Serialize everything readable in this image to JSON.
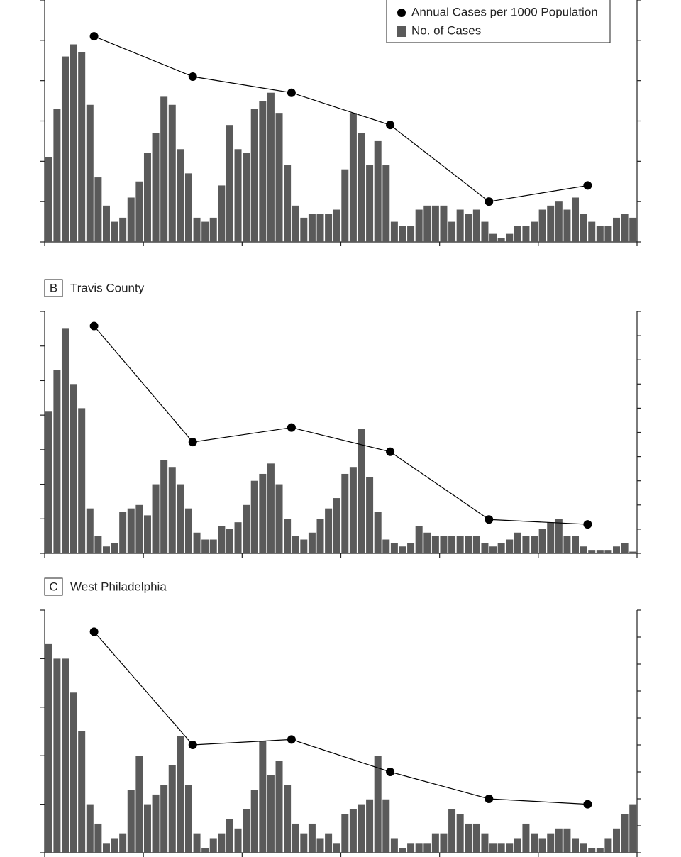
{
  "chart_data": [
    {
      "type": "bar_line",
      "xlim": [
        0,
        72
      ],
      "xticks": [
        0,
        12,
        24,
        36,
        48,
        60,
        72
      ],
      "ylim": [
        0,
        6
      ],
      "yticks": [
        0,
        1,
        2,
        3,
        4,
        5,
        6
      ],
      "y2lim": [
        0,
        6
      ],
      "y2ticks": [
        0,
        1,
        2,
        3,
        4,
        5,
        6
      ],
      "legend": "upper right",
      "series": [
        {
          "name": "No. of Cases",
          "color": "#5a5a5a",
          "values": [
            2.1,
            3.3,
            4.6,
            4.9,
            4.7,
            3.4,
            1.6,
            0.9,
            0.5,
            0.6,
            1.1,
            1.5,
            2.2,
            2.7,
            3.6,
            3.4,
            2.3,
            1.7,
            0.6,
            0.5,
            0.6,
            1.4,
            2.9,
            2.3,
            2.2,
            3.3,
            3.5,
            3.7,
            3.2,
            1.9,
            0.9,
            0.6,
            0.7,
            0.7,
            0.7,
            0.8,
            1.8,
            3.2,
            2.7,
            1.9,
            2.5,
            1.9,
            0.5,
            0.4,
            0.4,
            0.8,
            0.9,
            0.9,
            0.9,
            0.5,
            0.8,
            0.7,
            0.8,
            0.5,
            0.2,
            0.1,
            0.2,
            0.4,
            0.4,
            0.5,
            0.8,
            0.9,
            1.0,
            0.8,
            1.1,
            0.7,
            0.5,
            0.4,
            0.4,
            0.6,
            0.7,
            0.6
          ]
        },
        {
          "name": "Annual Cases per 1000 Population",
          "color": "#000000",
          "axis": "y2",
          "x": [
            6,
            18,
            30,
            42,
            54,
            66
          ],
          "values": [
            5.1,
            4.1,
            3.7,
            2.9,
            1.0,
            1.4
          ]
        }
      ]
    },
    {
      "type": "bar_line",
      "label": "B",
      "title": "Travis County",
      "xlim": [
        0,
        72
      ],
      "xticks": [
        0,
        12,
        24,
        36,
        48,
        60,
        72
      ],
      "ylim": [
        0,
        7
      ],
      "yticks": [
        0,
        1,
        2,
        3,
        4,
        5,
        6,
        7
      ],
      "y2lim": [
        0,
        10
      ],
      "y2ticks": [
        0,
        1,
        2,
        3,
        4,
        5,
        6,
        7,
        8,
        9,
        10
      ],
      "series": [
        {
          "color": "#5a5a5a",
          "values": [
            4.1,
            5.3,
            6.5,
            4.9,
            4.2,
            1.3,
            0.5,
            0.2,
            0.3,
            1.2,
            1.3,
            1.4,
            1.1,
            2.0,
            2.7,
            2.5,
            2.0,
            1.3,
            0.6,
            0.4,
            0.4,
            0.8,
            0.7,
            0.9,
            1.4,
            2.1,
            2.3,
            2.6,
            2.0,
            1.0,
            0.5,
            0.4,
            0.6,
            1.0,
            1.3,
            1.6,
            2.3,
            2.5,
            3.6,
            2.2,
            1.2,
            0.4,
            0.3,
            0.2,
            0.3,
            0.8,
            0.6,
            0.5,
            0.5,
            0.5,
            0.5,
            0.5,
            0.5,
            0.3,
            0.2,
            0.3,
            0.4,
            0.6,
            0.5,
            0.5,
            0.7,
            0.9,
            1.0,
            0.5,
            0.5,
            0.2,
            0.1,
            0.1,
            0.1,
            0.2,
            0.3,
            0.05
          ]
        },
        {
          "color": "#000000",
          "axis": "y2",
          "x": [
            6,
            18,
            30,
            42,
            54,
            66
          ],
          "values": [
            9.4,
            4.6,
            5.2,
            4.2,
            1.4,
            1.2
          ]
        }
      ]
    },
    {
      "type": "bar_line",
      "label": "C",
      "title": "West Philadelphia",
      "xlim": [
        0,
        72
      ],
      "xticks": [
        0,
        12,
        24,
        36,
        48,
        60,
        72
      ],
      "ylim": [
        0,
        5
      ],
      "yticks": [
        0,
        1,
        2,
        3,
        4,
        5
      ],
      "y2lim": [
        0,
        9
      ],
      "y2ticks": [
        0,
        1,
        2,
        3,
        4,
        5,
        6,
        7,
        8,
        9
      ],
      "series": [
        {
          "color": "#5a5a5a",
          "values": [
            4.3,
            4.0,
            4.0,
            3.3,
            2.5,
            1.0,
            0.6,
            0.2,
            0.3,
            0.4,
            1.3,
            2.0,
            1.0,
            1.2,
            1.4,
            1.8,
            2.4,
            1.4,
            0.4,
            0.1,
            0.3,
            0.4,
            0.7,
            0.5,
            0.9,
            1.3,
            2.3,
            1.6,
            1.9,
            1.4,
            0.6,
            0.4,
            0.6,
            0.3,
            0.4,
            0.2,
            0.8,
            0.9,
            1.0,
            1.1,
            2.0,
            1.1,
            0.3,
            0.1,
            0.2,
            0.2,
            0.2,
            0.4,
            0.4,
            0.9,
            0.8,
            0.6,
            0.6,
            0.4,
            0.2,
            0.2,
            0.2,
            0.3,
            0.6,
            0.4,
            0.3,
            0.4,
            0.5,
            0.5,
            0.3,
            0.2,
            0.1,
            0.1,
            0.3,
            0.5,
            0.8,
            1.0
          ]
        },
        {
          "color": "#000000",
          "axis": "y2",
          "x": [
            6,
            18,
            30,
            42,
            54,
            66
          ],
          "values": [
            8.2,
            4.0,
            4.2,
            3.0,
            2.0,
            1.8
          ]
        }
      ]
    }
  ]
}
